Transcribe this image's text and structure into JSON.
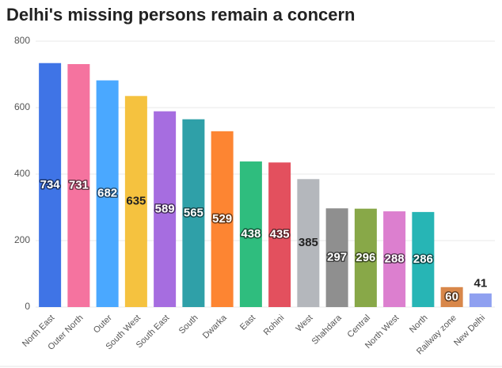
{
  "chart_data": {
    "type": "bar",
    "title": "Delhi's missing persons remain a concern",
    "categories": [
      "North East",
      "Outer North",
      "Outer",
      "South West",
      "South East",
      "South",
      "Dwarka",
      "East",
      "Rohini",
      "West",
      "Shahdara",
      "Central",
      "North West",
      "North",
      "Railway zone",
      "New Delhi"
    ],
    "values": [
      734,
      731,
      682,
      635,
      589,
      565,
      529,
      438,
      435,
      385,
      297,
      296,
      288,
      286,
      60,
      41
    ],
    "colors": [
      "#3f74e6",
      "#f5739f",
      "#4aa8ff",
      "#f5c23f",
      "#a66de0",
      "#2fa0a8",
      "#fd8532",
      "#2fbd7e",
      "#e3505e",
      "#b4b7bc",
      "#8f8f8f",
      "#88a848",
      "#dc7fcf",
      "#27b5b5",
      "#d8874a",
      "#8fa0f0"
    ],
    "ylim": [
      0,
      800
    ],
    "yticks": [
      0,
      200,
      400,
      600,
      800
    ],
    "grid": true
  }
}
